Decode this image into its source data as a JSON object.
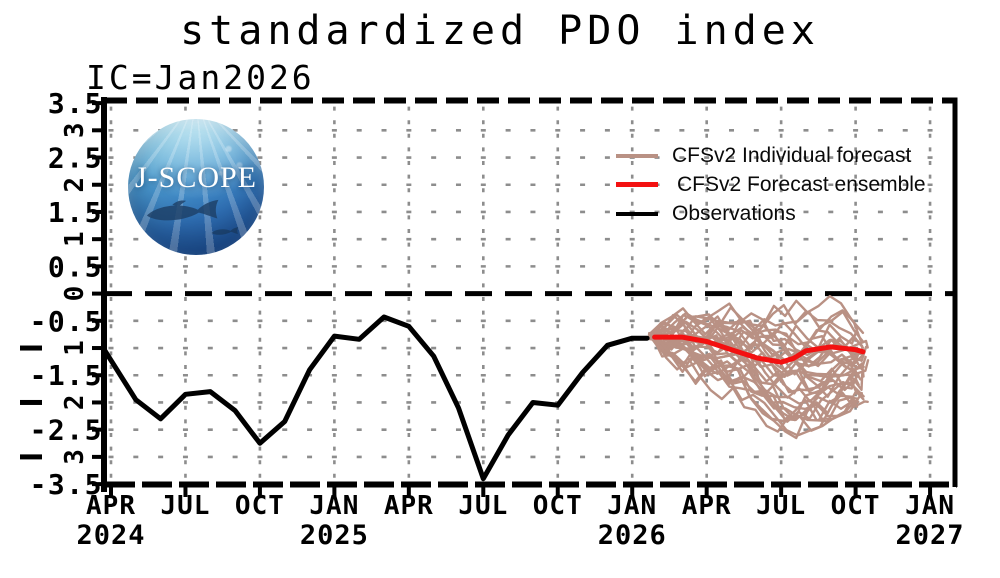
{
  "title": "standardized PDO index",
  "subtitle": "IC=Jan2026",
  "logo": {
    "text": "J-SCOPE"
  },
  "legend": [
    {
      "label": "CFSv2 Individual forecast",
      "color": "#b99184"
    },
    {
      "label": "CFSv2 Forecast ensemble",
      "color": "#f31111"
    },
    {
      "label": "Observations",
      "color": "#000000"
    }
  ],
  "chart_data": {
    "type": "line",
    "title": "standardized PDO index",
    "initial_condition": "IC=Jan2026",
    "ylim": [
      -3.5,
      3.5
    ],
    "xlabel": "",
    "ylabel": "",
    "x_axis_note": "month_index = months since Apr 2024; axis spans APR 2024 to beyond JAN 2027",
    "grid": {
      "dotted": true,
      "color": "#8d8d8d",
      "y_step": 0.5,
      "x_dot_step_months": 1,
      "vertical_line_every_months": 3
    },
    "zero_line": {
      "value": 0,
      "style": "dashed",
      "color": "#000000"
    },
    "y_ticks_horizontal": [
      {
        "value": 3.5,
        "label": "3.5"
      },
      {
        "value": 2.5,
        "label": "2.5"
      },
      {
        "value": 1.5,
        "label": "1.5"
      },
      {
        "value": 0.5,
        "label": "0.5"
      },
      {
        "value": -0.5,
        "label": "-0.5"
      },
      {
        "value": -1.5,
        "label": "-1.5"
      },
      {
        "value": -2.5,
        "label": "-2.5"
      },
      {
        "value": -3.5,
        "label": "-3.5"
      }
    ],
    "y_ticks_rotated": [
      {
        "value": 3,
        "label": "3"
      },
      {
        "value": 2,
        "label": "2"
      },
      {
        "value": 1,
        "label": "1"
      },
      {
        "value": 0,
        "label": "0"
      },
      {
        "value": -1,
        "label": "-1"
      },
      {
        "value": -2,
        "label": "-2"
      },
      {
        "value": -3,
        "label": "-3"
      }
    ],
    "x_ticks": [
      {
        "month_index": 0,
        "label": "APR"
      },
      {
        "month_index": 3,
        "label": "JUL"
      },
      {
        "month_index": 6,
        "label": "OCT"
      },
      {
        "month_index": 9,
        "label": "JAN"
      },
      {
        "month_index": 12,
        "label": "APR"
      },
      {
        "month_index": 15,
        "label": "JUL"
      },
      {
        "month_index": 18,
        "label": "OCT"
      },
      {
        "month_index": 21,
        "label": "JAN"
      },
      {
        "month_index": 24,
        "label": "APR"
      },
      {
        "month_index": 27,
        "label": "JUL"
      },
      {
        "month_index": 30,
        "label": "OCT"
      },
      {
        "month_index": 33,
        "label": "JAN"
      }
    ],
    "x_years": [
      {
        "month_index": 0,
        "label": "2024"
      },
      {
        "month_index": 9,
        "label": "2025"
      },
      {
        "month_index": 21,
        "label": "2026"
      },
      {
        "month_index": 33,
        "label": "2027"
      }
    ],
    "series": {
      "observations": {
        "label": "Observations",
        "color": "#000000",
        "starts_at_axis": true,
        "points_note": "[month_index, PDO value], Apr 2024 .. Jan 2026",
        "points": [
          [
            0,
            -1.05
          ],
          [
            1,
            -1.95
          ],
          [
            2,
            -2.3
          ],
          [
            3,
            -1.85
          ],
          [
            4,
            -1.8
          ],
          [
            5,
            -2.15
          ],
          [
            6,
            -2.75
          ],
          [
            7,
            -2.35
          ],
          [
            8,
            -1.4
          ],
          [
            9,
            -0.78
          ],
          [
            10,
            -0.84
          ],
          [
            11,
            -0.43
          ],
          [
            12,
            -0.6
          ],
          [
            13,
            -1.15
          ],
          [
            14,
            -2.1
          ],
          [
            15,
            -3.4
          ],
          [
            16,
            -2.6
          ],
          [
            17,
            -2.0
          ],
          [
            18,
            -2.05
          ],
          [
            19,
            -1.45
          ],
          [
            20,
            -0.95
          ],
          [
            21,
            -0.82
          ],
          [
            21.6,
            -0.82
          ]
        ]
      },
      "ensemble_mean": {
        "label": "CFSv2 Forecast ensemble",
        "color": "#f31111",
        "points": [
          [
            21.9,
            -0.8
          ],
          [
            22,
            -0.8
          ],
          [
            23,
            -0.8
          ],
          [
            24,
            -0.88
          ],
          [
            25,
            -1.03
          ],
          [
            26,
            -1.18
          ],
          [
            27,
            -1.26
          ],
          [
            27.5,
            -1.19
          ],
          [
            28,
            -1.05
          ],
          [
            29,
            -0.98
          ],
          [
            30,
            -1.03
          ],
          [
            30.3,
            -1.07
          ]
        ]
      },
      "members": {
        "label": "CFSv2 Individual forecast",
        "color": "#b99184",
        "count": 34,
        "seed": 11,
        "start_month": 21.8,
        "end_month": 30.25,
        "start_value": -0.78,
        "envelope": {
          "months": [
            21.8,
            22,
            23,
            24,
            25,
            26,
            27,
            28,
            29,
            30,
            30.4
          ],
          "top": [
            -0.5,
            -0.42,
            -0.2,
            -0.05,
            0.02,
            0.12,
            0.15,
            0.05,
            -0.05,
            -0.2,
            -0.3
          ],
          "bottom": [
            -1.05,
            -1.2,
            -1.55,
            -1.85,
            -2.1,
            -2.4,
            -2.75,
            -2.6,
            -2.35,
            -2.15,
            -2.0
          ]
        }
      }
    }
  }
}
